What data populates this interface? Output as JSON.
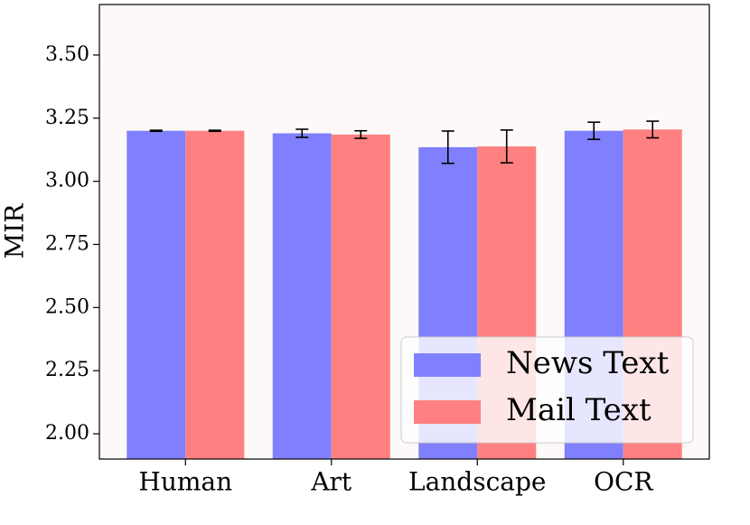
{
  "chart_data": {
    "type": "bar",
    "y_label": "MIR",
    "categories": [
      "Human",
      "Art",
      "Landscape",
      "OCR"
    ],
    "series": [
      {
        "name": "News Text",
        "color": "#8080ff",
        "values": [
          3.2,
          3.19,
          3.135,
          3.2
        ],
        "errors": [
          0.002,
          0.016,
          0.064,
          0.034
        ]
      },
      {
        "name": "Mail Text",
        "color": "#ff8080",
        "values": [
          3.2,
          3.185,
          3.138,
          3.205
        ],
        "errors": [
          0.002,
          0.015,
          0.065,
          0.033
        ]
      }
    ],
    "ylim": [
      1.9,
      3.7
    ],
    "yticks": [
      {
        "value": 2,
        "label": "2.00"
      },
      {
        "value": 2.25,
        "label": "2.25"
      },
      {
        "value": 2.5,
        "label": "2.50"
      },
      {
        "value": 2.75,
        "label": "2.75"
      },
      {
        "value": 3,
        "label": "3.00"
      },
      {
        "value": 3.25,
        "label": "3.25"
      },
      {
        "value": 3.5,
        "label": "3.50"
      }
    ],
    "legend": "lower right",
    "grid": false,
    "background": "#fdf9f8"
  }
}
